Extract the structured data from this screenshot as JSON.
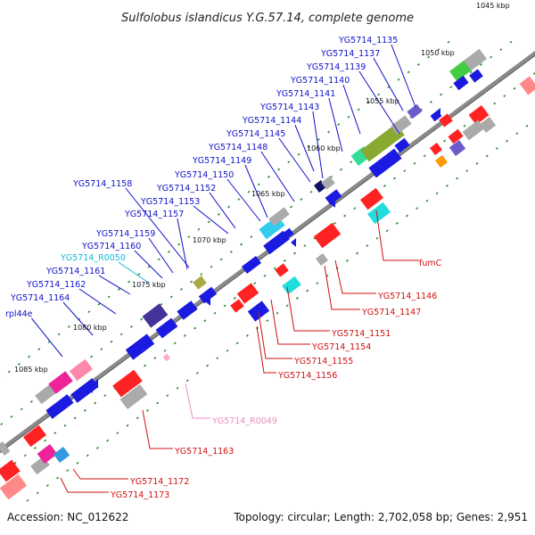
{
  "title": "Sulfolobus islandicus Y.G.57.14, complete genome",
  "footer": {
    "accession": "Accession: NC_012622",
    "summary": "Topology: circular; Length: 2,702,058 bp; Genes: 2,951"
  },
  "colors": {
    "backbone": "#777777",
    "tick": "#2a8a2a",
    "label_blue": "#1010c8",
    "label_red": "#d01010",
    "label_cyan": "#10b8d8",
    "label_pink": "#e88cc0"
  },
  "kbp_markers": [
    "1045 kbp",
    "1050 kbp",
    "1055 kbp",
    "1060 kbp",
    "1065 kbp",
    "1070 kbp",
    "1075 kbp",
    "1080 kbp",
    "1085 kbp"
  ],
  "upper_labels": [
    {
      "text": "YG5714_1135",
      "color": "blue"
    },
    {
      "text": "YG5714_1137",
      "color": "blue"
    },
    {
      "text": "YG5714_1139",
      "color": "blue"
    },
    {
      "text": "YG5714_1140",
      "color": "blue"
    },
    {
      "text": "YG5714_1141",
      "color": "blue"
    },
    {
      "text": "YG5714_1143",
      "color": "blue"
    },
    {
      "text": "YG5714_1144",
      "color": "blue"
    },
    {
      "text": "YG5714_1145",
      "color": "blue"
    },
    {
      "text": "YG5714_1148",
      "color": "blue"
    },
    {
      "text": "YG5714_1149",
      "color": "blue"
    },
    {
      "text": "YG5714_1150",
      "color": "blue"
    },
    {
      "text": "YG5714_1152",
      "color": "blue"
    },
    {
      "text": "YG5714_1158",
      "color": "blue"
    },
    {
      "text": "YG5714_1153",
      "color": "blue"
    },
    {
      "text": "YG5714_1157",
      "color": "blue"
    },
    {
      "text": "YG5714_1159",
      "color": "blue"
    },
    {
      "text": "YG5714_1160",
      "color": "blue"
    },
    {
      "text": "YG5714_R0050",
      "color": "cyan"
    },
    {
      "text": "YG5714_1161",
      "color": "blue"
    },
    {
      "text": "YG5714_1162",
      "color": "blue"
    },
    {
      "text": "YG5714_1164",
      "color": "blue"
    },
    {
      "text": "rpl44e",
      "color": "blue"
    }
  ],
  "lower_labels": [
    {
      "text": "fumC",
      "color": "red"
    },
    {
      "text": "YG5714_1146",
      "color": "red"
    },
    {
      "text": "YG5714_1147",
      "color": "red"
    },
    {
      "text": "YG5714_1151",
      "color": "red"
    },
    {
      "text": "YG5714_1154",
      "color": "red"
    },
    {
      "text": "YG5714_1155",
      "color": "red"
    },
    {
      "text": "YG5714_1156",
      "color": "red"
    },
    {
      "text": "YG5714_R0049",
      "color": "pink"
    },
    {
      "text": "YG5714_1163",
      "color": "red"
    },
    {
      "text": "YG5714_1172",
      "color": "red"
    },
    {
      "text": "YG5714_1173",
      "color": "red"
    }
  ]
}
